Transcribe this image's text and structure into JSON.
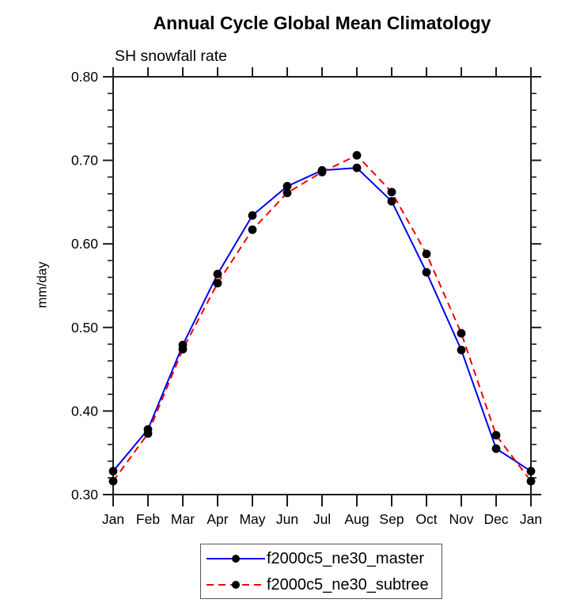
{
  "title": "Annual Cycle Global Mean Climatology",
  "subtitle": "SH snowfall rate",
  "chart_data": {
    "type": "line",
    "x_categories": [
      "Jan",
      "Feb",
      "Mar",
      "Apr",
      "May",
      "Jun",
      "Jul",
      "Aug",
      "Sep",
      "Oct",
      "Nov",
      "Dec",
      "Jan"
    ],
    "series": [
      {
        "name": "f2000c5_ne30_master",
        "color": "#0000ee",
        "line_style": "solid",
        "marker": "filled-circle",
        "marker_color": "#000000",
        "values": [
          0.328,
          0.378,
          0.479,
          0.564,
          0.634,
          0.669,
          0.688,
          0.691,
          0.651,
          0.566,
          0.473,
          0.355,
          0.328
        ]
      },
      {
        "name": "f2000c5_ne30_subtree",
        "color": "#f40000",
        "line_style": "dashed",
        "marker": "filled-circle",
        "marker_color": "#000000",
        "values": [
          0.316,
          0.373,
          0.474,
          0.553,
          0.617,
          0.661,
          0.686,
          0.706,
          0.662,
          0.588,
          0.493,
          0.371,
          0.316
        ]
      }
    ],
    "xlabel": "",
    "ylabel": "mm/day",
    "ylim": [
      0.3,
      0.8
    ],
    "yticks_major": [
      0.3,
      0.4,
      0.5,
      0.6,
      0.7,
      0.8
    ],
    "ytick_minor_step": 0.02,
    "ytick_label_format": "2dp",
    "grid": false,
    "axis_color": "#1b1b1b",
    "tick_sides": "all-outward",
    "legend_position": "bottom-center"
  }
}
